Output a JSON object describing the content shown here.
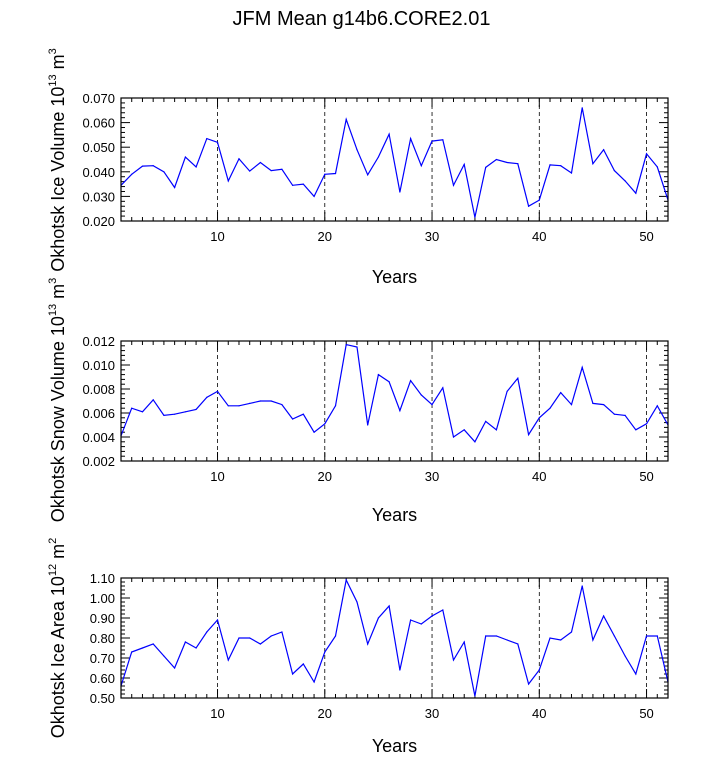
{
  "title": "JFM Mean g14b6.CORE2.01",
  "line_color": "#0000ff",
  "chart_data": [
    {
      "type": "line",
      "name": "ice-volume",
      "ylabel": "Okhotsk Ice Volume",
      "ylabel_base": "10",
      "ylabel_exp": "13",
      "ylabel_unit": "m",
      "ylabel_unit_exp": "3",
      "xlabel": "Years",
      "xlim": [
        1,
        52
      ],
      "ylim": [
        0.02,
        0.07
      ],
      "xticks": [
        10,
        20,
        30,
        40,
        50
      ],
      "xtick_labels": [
        "10",
        "20",
        "30",
        "40",
        "50"
      ],
      "yticks": [
        0.02,
        0.03,
        0.04,
        0.05,
        0.06,
        0.07
      ],
      "ytick_labels": [
        "0.020",
        "0.030",
        "0.040",
        "0.050",
        "0.060",
        "0.070"
      ],
      "x": [
        1,
        2,
        3,
        4,
        5,
        6,
        7,
        8,
        9,
        10,
        11,
        12,
        13,
        14,
        15,
        16,
        17,
        18,
        19,
        20,
        21,
        22,
        23,
        24,
        25,
        26,
        27,
        28,
        29,
        30,
        31,
        32,
        33,
        34,
        35,
        36,
        37,
        38,
        39,
        40,
        41,
        42,
        43,
        44,
        45,
        46,
        47,
        48,
        49,
        50,
        51,
        52
      ],
      "y": [
        0.0345,
        0.039,
        0.0423,
        0.0425,
        0.04,
        0.0336,
        0.046,
        0.042,
        0.0535,
        0.052,
        0.0363,
        0.0453,
        0.0403,
        0.0438,
        0.0405,
        0.041,
        0.0345,
        0.035,
        0.03,
        0.039,
        0.0393,
        0.0613,
        0.049,
        0.0388,
        0.046,
        0.0553,
        0.0318,
        0.0535,
        0.0425,
        0.0525,
        0.053,
        0.0345,
        0.043,
        0.0215,
        0.0418,
        0.045,
        0.0438,
        0.0433,
        0.026,
        0.0285,
        0.0428,
        0.0425,
        0.0395,
        0.066,
        0.0433,
        0.049,
        0.0405,
        0.0363,
        0.0313,
        0.0473,
        0.042,
        0.0285
      ]
    },
    {
      "type": "line",
      "name": "snow-volume",
      "ylabel": "Okhotsk Snow Volume",
      "ylabel_base": "10",
      "ylabel_exp": "13",
      "ylabel_unit": "m",
      "ylabel_unit_exp": "3",
      "xlabel": "Years",
      "xlim": [
        1,
        52
      ],
      "ylim": [
        0.002,
        0.012
      ],
      "xticks": [
        10,
        20,
        30,
        40,
        50
      ],
      "xtick_labels": [
        "10",
        "20",
        "30",
        "40",
        "50"
      ],
      "yticks": [
        0.002,
        0.004,
        0.006,
        0.008,
        0.01,
        0.012
      ],
      "ytick_labels": [
        "0.002",
        "0.004",
        "0.006",
        "0.008",
        "0.010",
        "0.012"
      ],
      "x": [
        1,
        2,
        3,
        4,
        5,
        6,
        7,
        8,
        9,
        10,
        11,
        12,
        13,
        14,
        15,
        16,
        17,
        18,
        19,
        20,
        21,
        22,
        23,
        24,
        25,
        26,
        27,
        28,
        29,
        30,
        31,
        32,
        33,
        34,
        35,
        36,
        37,
        38,
        39,
        40,
        41,
        42,
        43,
        44,
        45,
        46,
        47,
        48,
        49,
        50,
        51,
        52
      ],
      "y": [
        0.0041,
        0.0064,
        0.0061,
        0.0071,
        0.0058,
        0.0059,
        0.0061,
        0.0063,
        0.0073,
        0.0078,
        0.0066,
        0.0066,
        0.0068,
        0.007,
        0.007,
        0.0067,
        0.0055,
        0.0059,
        0.0044,
        0.0051,
        0.0066,
        0.0117,
        0.0115,
        0.005,
        0.0092,
        0.0086,
        0.0062,
        0.0087,
        0.0075,
        0.0067,
        0.0081,
        0.004,
        0.0046,
        0.0036,
        0.0053,
        0.0046,
        0.0078,
        0.0089,
        0.0042,
        0.0056,
        0.0064,
        0.0077,
        0.0067,
        0.0098,
        0.0068,
        0.0067,
        0.0059,
        0.0058,
        0.0046,
        0.0051,
        0.0066,
        0.005
      ]
    },
    {
      "type": "line",
      "name": "ice-area",
      "ylabel": "Okhotsk Ice Area",
      "ylabel_base": "10",
      "ylabel_exp": "12",
      "ylabel_unit": "m",
      "ylabel_unit_exp": "2",
      "xlabel": "Years",
      "xlim": [
        1,
        52
      ],
      "ylim": [
        0.5,
        1.1
      ],
      "xticks": [
        10,
        20,
        30,
        40,
        50
      ],
      "xtick_labels": [
        "10",
        "20",
        "30",
        "40",
        "50"
      ],
      "yticks": [
        0.5,
        0.6,
        0.7,
        0.8,
        0.9,
        1.0,
        1.1
      ],
      "ytick_labels": [
        "0.50",
        "0.60",
        "0.70",
        "0.80",
        "0.90",
        "1.00",
        "1.10"
      ],
      "x": [
        1,
        2,
        3,
        4,
        5,
        6,
        7,
        8,
        9,
        10,
        11,
        12,
        13,
        14,
        15,
        16,
        17,
        18,
        19,
        20,
        21,
        22,
        23,
        24,
        25,
        26,
        27,
        28,
        29,
        30,
        31,
        32,
        33,
        34,
        35,
        36,
        37,
        38,
        39,
        40,
        41,
        42,
        43,
        44,
        45,
        46,
        47,
        48,
        49,
        50,
        51,
        52
      ],
      "y": [
        0.56,
        0.73,
        0.75,
        0.77,
        0.71,
        0.65,
        0.78,
        0.75,
        0.83,
        0.89,
        0.69,
        0.8,
        0.8,
        0.77,
        0.81,
        0.83,
        0.62,
        0.67,
        0.58,
        0.73,
        0.81,
        1.09,
        0.98,
        0.77,
        0.9,
        0.96,
        0.64,
        0.89,
        0.87,
        0.91,
        0.94,
        0.69,
        0.78,
        0.51,
        0.81,
        0.81,
        0.79,
        0.77,
        0.57,
        0.64,
        0.8,
        0.79,
        0.83,
        1.06,
        0.79,
        0.91,
        0.81,
        0.71,
        0.62,
        0.81,
        0.81,
        0.58
      ]
    }
  ]
}
